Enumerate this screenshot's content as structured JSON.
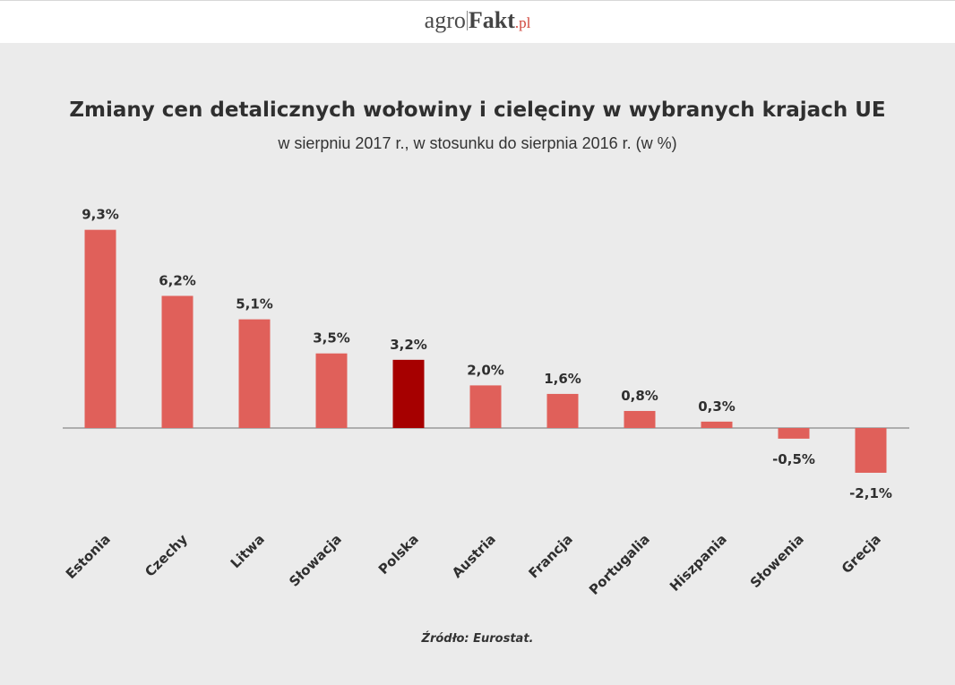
{
  "header": {
    "logo": {
      "part1": "agro",
      "part2": "Fakt",
      "part3": ".pl"
    }
  },
  "chart_data": {
    "type": "bar",
    "title": "Zmiany cen detalicznych wołowiny i cielęciny w wybranych krajach UE",
    "subtitle": "w sierpniu 2017 r., w stosunku do sierpnia 2016 r. (w %)",
    "categories": [
      "Estonia",
      "Czechy",
      "Litwa",
      "Słowacja",
      "Polska",
      "Austria",
      "Francja",
      "Portugalia",
      "Hiszpania",
      "Słowenia",
      "Grecja"
    ],
    "values": [
      9.3,
      6.2,
      5.1,
      3.5,
      3.2,
      2.0,
      1.6,
      0.8,
      0.3,
      -0.5,
      -2.1
    ],
    "value_labels": [
      "9,3%",
      "6,2%",
      "5,1%",
      "3,5%",
      "3,2%",
      "2,0%",
      "1,6%",
      "0,8%",
      "0,3%",
      "-0,5%",
      "-2,1%"
    ],
    "highlight_category": "Polska",
    "colors": {
      "bar": "#e0605a",
      "highlight": "#a60000",
      "axis": "#999999"
    },
    "ylim": [
      -2.1,
      9.3
    ],
    "grid": false,
    "legend": "none",
    "source": "Źródło: Eurostat."
  }
}
